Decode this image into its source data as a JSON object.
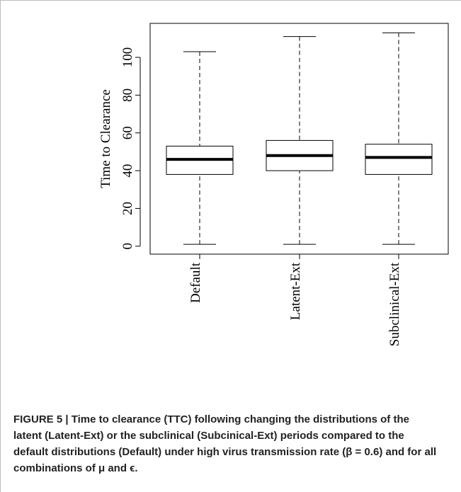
{
  "chart_data": {
    "type": "box",
    "ylabel": "Time to Clearance",
    "categories": [
      "Default",
      "Latent-Ext",
      "Subclinical-Ext"
    ],
    "boxes": [
      {
        "min": 1,
        "q1": 38,
        "median": 46,
        "q3": 53,
        "max": 103
      },
      {
        "min": 1,
        "q1": 40,
        "median": 48,
        "q3": 56,
        "max": 111
      },
      {
        "min": 1,
        "q1": 38,
        "median": 47,
        "q3": 54,
        "max": 113
      }
    ],
    "ylim": [
      -4.2,
      118
    ],
    "yticks": [
      0,
      20,
      40,
      60,
      80,
      100
    ],
    "color": "#000000",
    "caption": "FIGURE 5 | Time to clearance (TTC) following changing the distributions of the latent (Latent-Ext) or the subclinical (Subcinical-Ext) periods compared to the default distributions (Default) under high virus transmission rate (β = 0.6) and for all combinations of μ and ϵ."
  }
}
